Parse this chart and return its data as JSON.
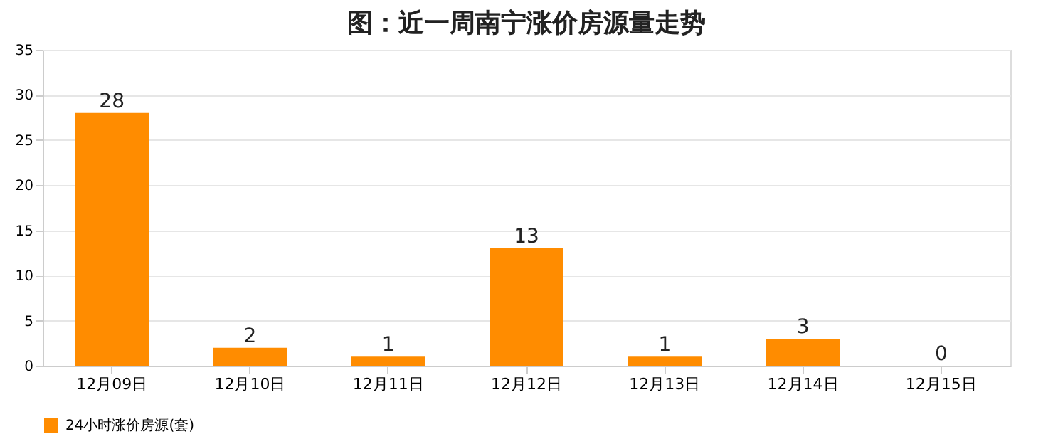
{
  "chart_data": {
    "type": "bar",
    "title": "图：近一周南宁涨价房源量走势",
    "categories": [
      "12月09日",
      "12月10日",
      "12月11日",
      "12月12日",
      "12月13日",
      "12月14日",
      "12月15日"
    ],
    "series": [
      {
        "name": "24小时涨价房源(套)",
        "color": "#ff8c00",
        "values": [
          28,
          2,
          1,
          13,
          1,
          3,
          0
        ]
      }
    ],
    "ylim": [
      0,
      35
    ],
    "yticks": [
      0,
      5,
      10,
      15,
      20,
      25,
      30,
      35
    ],
    "grid": "y",
    "legend": "bottom",
    "data_labels": true
  }
}
